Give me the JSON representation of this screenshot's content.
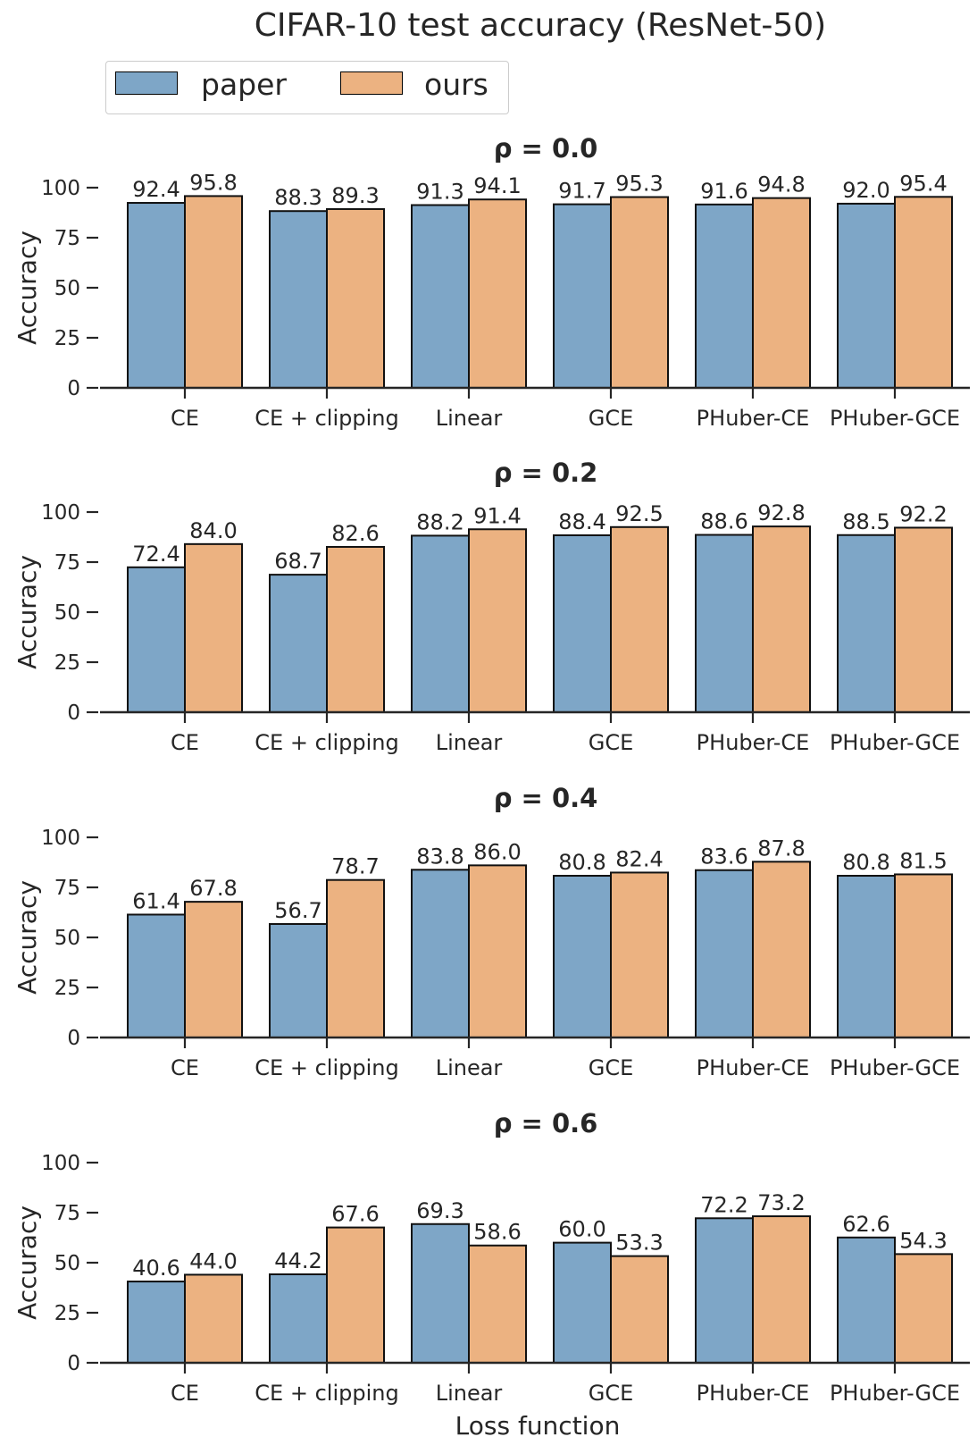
{
  "figure_title": "CIFAR-10 test accuracy (ResNet-50)",
  "legend": [
    {
      "label": "paper",
      "color": "#7EA6C7"
    },
    {
      "label": "ours",
      "color": "#ECB281"
    }
  ],
  "chart_data": [
    {
      "type": "bar",
      "title": "ρ = 0.0",
      "xlabel": "",
      "ylabel": "Accuracy",
      "ylim": [
        0,
        100
      ],
      "yticks": [
        0,
        25,
        50,
        75,
        100
      ],
      "categories": [
        "CE",
        "CE + clipping",
        "Linear",
        "GCE",
        "PHuber-CE",
        "PHuber-GCE"
      ],
      "series": [
        {
          "name": "paper",
          "values": [
            92.4,
            88.3,
            91.3,
            91.7,
            91.6,
            92.0
          ],
          "labels": [
            "92.4",
            "88.3",
            "91.3",
            "91.7",
            "91.6",
            "92.0"
          ]
        },
        {
          "name": "ours",
          "values": [
            95.8,
            89.3,
            94.1,
            95.3,
            94.8,
            95.4
          ],
          "labels": [
            "95.8",
            "89.3",
            "94.1",
            "95.3",
            "94.8",
            "95.4"
          ]
        }
      ]
    },
    {
      "type": "bar",
      "title": "ρ = 0.2",
      "xlabel": "",
      "ylabel": "Accuracy",
      "ylim": [
        0,
        100
      ],
      "yticks": [
        0,
        25,
        50,
        75,
        100
      ],
      "categories": [
        "CE",
        "CE + clipping",
        "Linear",
        "GCE",
        "PHuber-CE",
        "PHuber-GCE"
      ],
      "series": [
        {
          "name": "paper",
          "values": [
            72.4,
            68.7,
            88.2,
            88.4,
            88.6,
            88.5
          ],
          "labels": [
            "72.4",
            "68.7",
            "88.2",
            "88.4",
            "88.6",
            "88.5"
          ]
        },
        {
          "name": "ours",
          "values": [
            84.0,
            82.6,
            91.4,
            92.5,
            92.8,
            92.2
          ],
          "labels": [
            "84.0",
            "82.6",
            "91.4",
            "92.5",
            "92.8",
            "92.2"
          ]
        }
      ]
    },
    {
      "type": "bar",
      "title": "ρ = 0.4",
      "xlabel": "",
      "ylabel": "Accuracy",
      "ylim": [
        0,
        100
      ],
      "yticks": [
        0,
        25,
        50,
        75,
        100
      ],
      "categories": [
        "CE",
        "CE + clipping",
        "Linear",
        "GCE",
        "PHuber-CE",
        "PHuber-GCE"
      ],
      "series": [
        {
          "name": "paper",
          "values": [
            61.4,
            56.7,
            83.8,
            80.8,
            83.6,
            80.8
          ],
          "labels": [
            "61.4",
            "56.7",
            "83.8",
            "80.8",
            "83.6",
            "80.8"
          ]
        },
        {
          "name": "ours",
          "values": [
            67.8,
            78.7,
            86.0,
            82.4,
            87.8,
            81.5
          ],
          "labels": [
            "67.8",
            "78.7",
            "86.0",
            "82.4",
            "87.8",
            "81.5"
          ]
        }
      ]
    },
    {
      "type": "bar",
      "title": "ρ = 0.6",
      "xlabel": "Loss function",
      "ylabel": "Accuracy",
      "ylim": [
        0,
        100
      ],
      "yticks": [
        0,
        25,
        50,
        75,
        100
      ],
      "categories": [
        "CE",
        "CE + clipping",
        "Linear",
        "GCE",
        "PHuber-CE",
        "PHuber-GCE"
      ],
      "series": [
        {
          "name": "paper",
          "values": [
            40.6,
            44.2,
            69.3,
            60.0,
            72.2,
            62.6
          ],
          "labels": [
            "40.6",
            "44.2",
            "69.3",
            "60.0",
            "72.2",
            "62.6"
          ]
        },
        {
          "name": "ours",
          "values": [
            44.0,
            67.6,
            58.6,
            53.3,
            73.2,
            54.3
          ],
          "labels": [
            "44.0",
            "67.6",
            "58.6",
            "53.3",
            "73.2",
            "54.3"
          ]
        }
      ]
    }
  ]
}
